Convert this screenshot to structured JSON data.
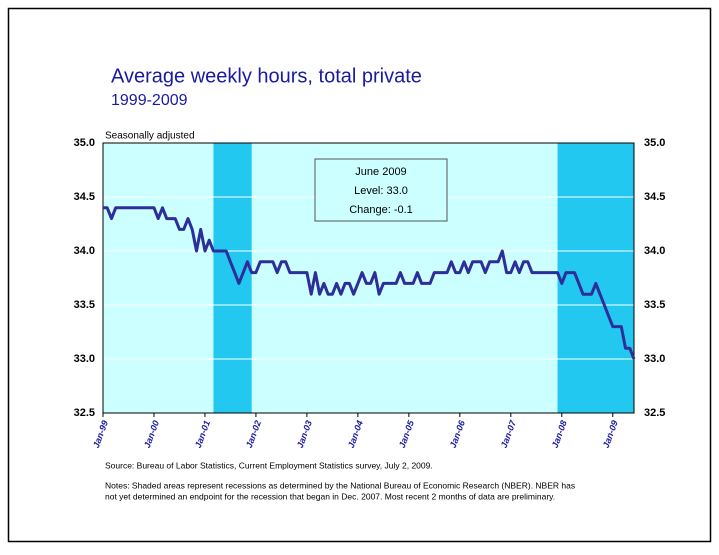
{
  "chart_data": {
    "type": "line",
    "title": "Average weekly hours, total private",
    "subtitle": "1999-2009",
    "y_label": "Seasonally adjusted",
    "source": "Source:  Bureau of Labor Statistics, Current Employment Statistics survey, July 2, 2009.",
    "notes": [
      "Notes: Shaded areas represent recessions as determined by the National Bureau of Economic Research (NBER). NBER has",
      "not yet determined an endpoint  for the recession that began in Dec. 2007. Most recent 2 months of data are preliminary."
    ],
    "annotation": [
      "June 2009",
      "Level: 33.0",
      "Change: -0.1"
    ],
    "categories": [
      "Jan-99",
      null,
      null,
      null,
      null,
      null,
      null,
      null,
      null,
      null,
      null,
      null,
      "Jan-00",
      null,
      null,
      null,
      null,
      null,
      null,
      null,
      null,
      null,
      null,
      null,
      "Jan-01",
      null,
      null,
      null,
      null,
      null,
      null,
      null,
      null,
      null,
      null,
      null,
      "Jan-02",
      null,
      null,
      null,
      null,
      null,
      null,
      null,
      null,
      null,
      null,
      null,
      "Jan-03",
      null,
      null,
      null,
      null,
      null,
      null,
      null,
      null,
      null,
      null,
      null,
      "Jan-04",
      null,
      null,
      null,
      null,
      null,
      null,
      null,
      null,
      null,
      null,
      null,
      "Jan-05",
      null,
      null,
      null,
      null,
      null,
      null,
      null,
      null,
      null,
      null,
      null,
      "Jan-06",
      null,
      null,
      null,
      null,
      null,
      null,
      null,
      null,
      null,
      null,
      null,
      "Jan-07",
      null,
      null,
      null,
      null,
      null,
      null,
      null,
      null,
      null,
      null,
      null,
      "Jan-08",
      null,
      null,
      null,
      null,
      null,
      null,
      null,
      null,
      null,
      null,
      null,
      "Jan-09",
      null,
      null,
      null,
      null,
      null
    ],
    "series": [
      {
        "name": "Average weekly hours",
        "color": "#2e2e9a",
        "values": [
          34.4,
          34.4,
          34.3,
          34.4,
          34.4,
          34.4,
          34.4,
          34.4,
          34.4,
          34.4,
          34.4,
          34.4,
          34.4,
          34.3,
          34.4,
          34.3,
          34.3,
          34.3,
          34.2,
          34.2,
          34.3,
          34.2,
          34.0,
          34.2,
          34.0,
          34.1,
          34.0,
          34.0,
          34.0,
          34.0,
          33.9,
          33.8,
          33.7,
          33.8,
          33.9,
          33.8,
          33.8,
          33.9,
          33.9,
          33.9,
          33.9,
          33.8,
          33.9,
          33.9,
          33.8,
          33.8,
          33.8,
          33.8,
          33.8,
          33.6,
          33.8,
          33.6,
          33.7,
          33.6,
          33.6,
          33.7,
          33.6,
          33.7,
          33.7,
          33.6,
          33.7,
          33.8,
          33.7,
          33.7,
          33.8,
          33.6,
          33.7,
          33.7,
          33.7,
          33.7,
          33.8,
          33.7,
          33.7,
          33.7,
          33.8,
          33.7,
          33.7,
          33.7,
          33.8,
          33.8,
          33.8,
          33.8,
          33.9,
          33.8,
          33.8,
          33.9,
          33.8,
          33.9,
          33.9,
          33.9,
          33.8,
          33.9,
          33.9,
          33.9,
          34.0,
          33.8,
          33.8,
          33.9,
          33.8,
          33.9,
          33.9,
          33.8,
          33.8,
          33.8,
          33.8,
          33.8,
          33.8,
          33.8,
          33.7,
          33.8,
          33.8,
          33.8,
          33.7,
          33.6,
          33.6,
          33.6,
          33.7,
          33.6,
          33.5,
          33.4,
          33.3,
          33.3,
          33.3,
          33.1,
          33.1,
          33.0
        ]
      }
    ],
    "recessions": [
      [
        26,
        35
      ],
      [
        107,
        125
      ]
    ],
    "plot_color": "#ccffff",
    "recession_color": "#22c8f0",
    "ylim": [
      32.5,
      35
    ],
    "yticks": [
      {
        "value": 32.5,
        "label": "32.5"
      },
      {
        "value": 33,
        "label": "33.0"
      },
      {
        "value": 33.5,
        "label": "33.5"
      },
      {
        "value": 34,
        "label": "34.0"
      },
      {
        "value": 34.5,
        "label": "34.5"
      },
      {
        "value": 35,
        "label": "35.0"
      }
    ],
    "grid": true
  }
}
